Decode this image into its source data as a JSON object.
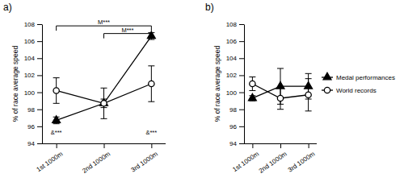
{
  "chart_data": [
    {
      "type": "line",
      "title": "a)",
      "y_label": "% of race average speed",
      "categories": [
        "1st 1000m",
        "2nd 1000m",
        "3rd 1000m"
      ],
      "series": [
        {
          "color": "#000000",
          "marker": "triangle",
          "line_style": "solid",
          "values": [
            96.7,
            98.7,
            106.6
          ],
          "errors": [
            0.4,
            0.5,
            0.4
          ]
        },
        {
          "color": "#000000",
          "marker": "circle-open",
          "line_style": "solid",
          "values": [
            100.2,
            98.7,
            101.0
          ],
          "errors": [
            1.5,
            1.8,
            2.1
          ]
        }
      ],
      "ylim": [
        94,
        108
      ],
      "yticks": [
        94,
        96,
        98,
        100,
        102,
        104,
        106,
        108
      ],
      "annotations": [
        {
          "text": "M***",
          "from": 0,
          "to": 2,
          "y": 107.8
        },
        {
          "text": "M***",
          "from": 1,
          "to": 2,
          "y": 106.9
        },
        {
          "text": "&***",
          "at": 0,
          "y": 95.0
        },
        {
          "text": "&***",
          "at": 2,
          "y": 95.0
        }
      ]
    },
    {
      "type": "line",
      "title": "b)",
      "y_label": "% of race average speed",
      "categories": [
        "1st 1000m",
        "2nd 1000m",
        "3rd 1000m"
      ],
      "series": [
        {
          "name": "Medal performances",
          "color": "#000000",
          "marker": "triangle",
          "line_style": "solid",
          "values": [
            99.3,
            100.7,
            100.7
          ],
          "errors": [
            0.3,
            2.1,
            1.5
          ]
        },
        {
          "name": "World records",
          "color": "#000000",
          "marker": "circle-open",
          "line_style": "solid",
          "values": [
            101.0,
            99.3,
            99.7
          ],
          "errors": [
            0.8,
            1.3,
            1.9
          ]
        }
      ],
      "ylim": [
        94,
        108
      ],
      "yticks": [
        94,
        96,
        98,
        100,
        102,
        104,
        106,
        108
      ],
      "legend": "right"
    }
  ]
}
